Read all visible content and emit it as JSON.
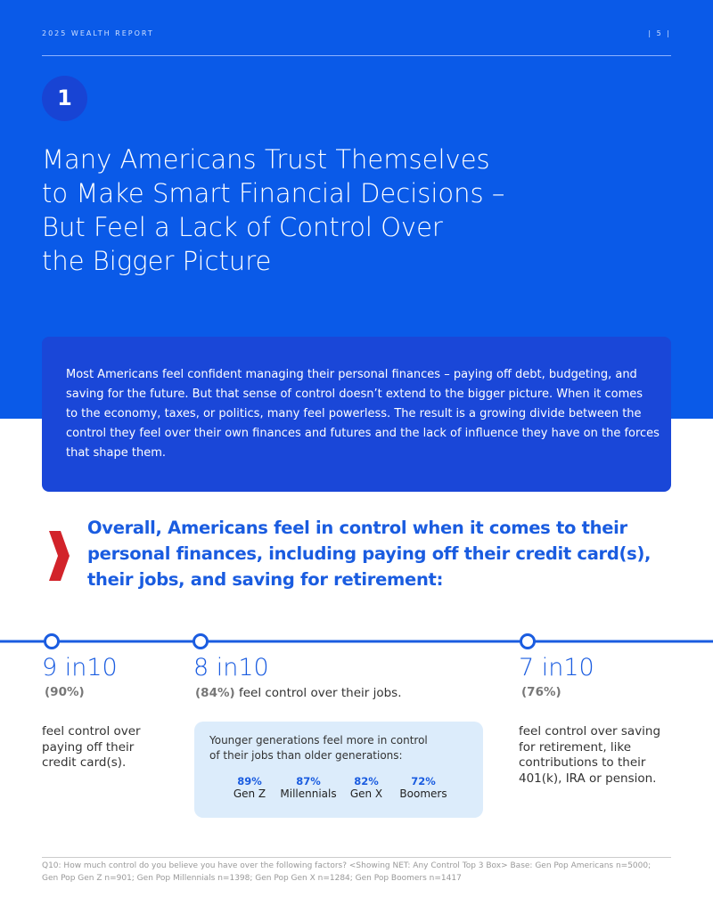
{
  "header": {
    "report": "2025 WEALTH REPORT",
    "page": "| 5 |"
  },
  "section_number": "1",
  "title_lines": [
    "Many Americans Trust Themselves",
    "to Make Smart Financial Decisions –",
    "But Feel a Lack of Control Over",
    "the Bigger Picture"
  ],
  "intro_lines": [
    "Most Americans feel confident managing their personal finances – paying off debt, budgeting, and",
    "saving for the future. But that sense of control doesn’t extend to the bigger picture.  When it comes",
    "to the economy, taxes, or politics, many feel powerless. The result is a growing divide between the",
    "control they feel over their own finances and futures and the lack of influence they have on the forces",
    "that shape them."
  ],
  "callout_lines": [
    "Overall, Americans feel in control when it comes to their",
    "personal finances, including paying off their credit card(s),",
    "their jobs, and saving for retirement:"
  ],
  "stats": [
    {
      "headline": "9 in10",
      "percent": "(90%)",
      "text_lines": [
        "feel control over",
        "paying off their",
        "credit card(s)."
      ]
    },
    {
      "headline": "8 in10",
      "percent": "(84%)",
      "text_lines": [
        "feel control over their jobs."
      ]
    },
    {
      "headline": "7 in10",
      "percent": "(76%)",
      "text_lines": [
        "feel control over saving",
        "for retirement, like",
        "contributions to their",
        "401(k), IRA or pension."
      ]
    }
  ],
  "generations": {
    "intro_lines": [
      "Younger generations feel more in control",
      "of their jobs than older generations:"
    ],
    "items": [
      {
        "value": "89%",
        "label": "Gen Z"
      },
      {
        "value": "87%",
        "label": "Millennials"
      },
      {
        "value": "82%",
        "label": "Gen X"
      },
      {
        "value": "72%",
        "label": "Boomers"
      }
    ]
  },
  "footnote_lines": [
    "Q10: How much control do you believe you have over the following factors? <Showing NET: Any Control Top 3 Box> Base: Gen Pop Americans n=5000;",
    "Gen Pop Gen Z n=901; Gen Pop Millennials n=1398; Gen Pop Gen X n=1284; Gen Pop Boomers n=1417"
  ]
}
